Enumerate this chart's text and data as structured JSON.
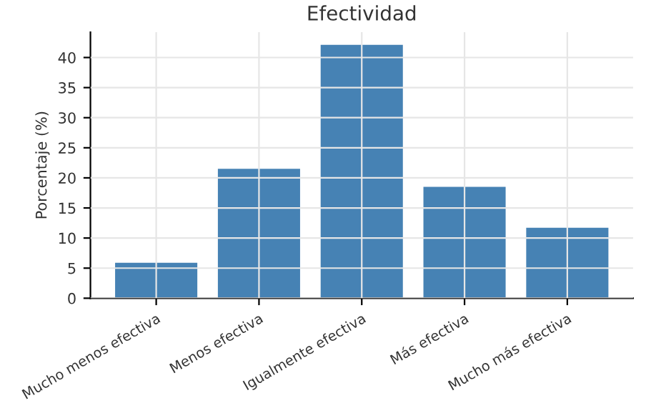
{
  "chart_data": {
    "type": "bar",
    "title": "Efectividad",
    "ylabel": "Porcentaje (%)",
    "categories": [
      "Mucho menos efectiva",
      "Menos efectiva",
      "Igualmente efectiva",
      "Más efectiva",
      "Mucho más efectiva"
    ],
    "values": [
      5.9,
      21.5,
      42.1,
      18.5,
      11.7
    ],
    "color": "#4682b4",
    "ylim": [
      0,
      44.2
    ],
    "yticks": [
      0,
      5,
      10,
      15,
      20,
      25,
      30,
      35,
      40
    ],
    "grid": true
  }
}
